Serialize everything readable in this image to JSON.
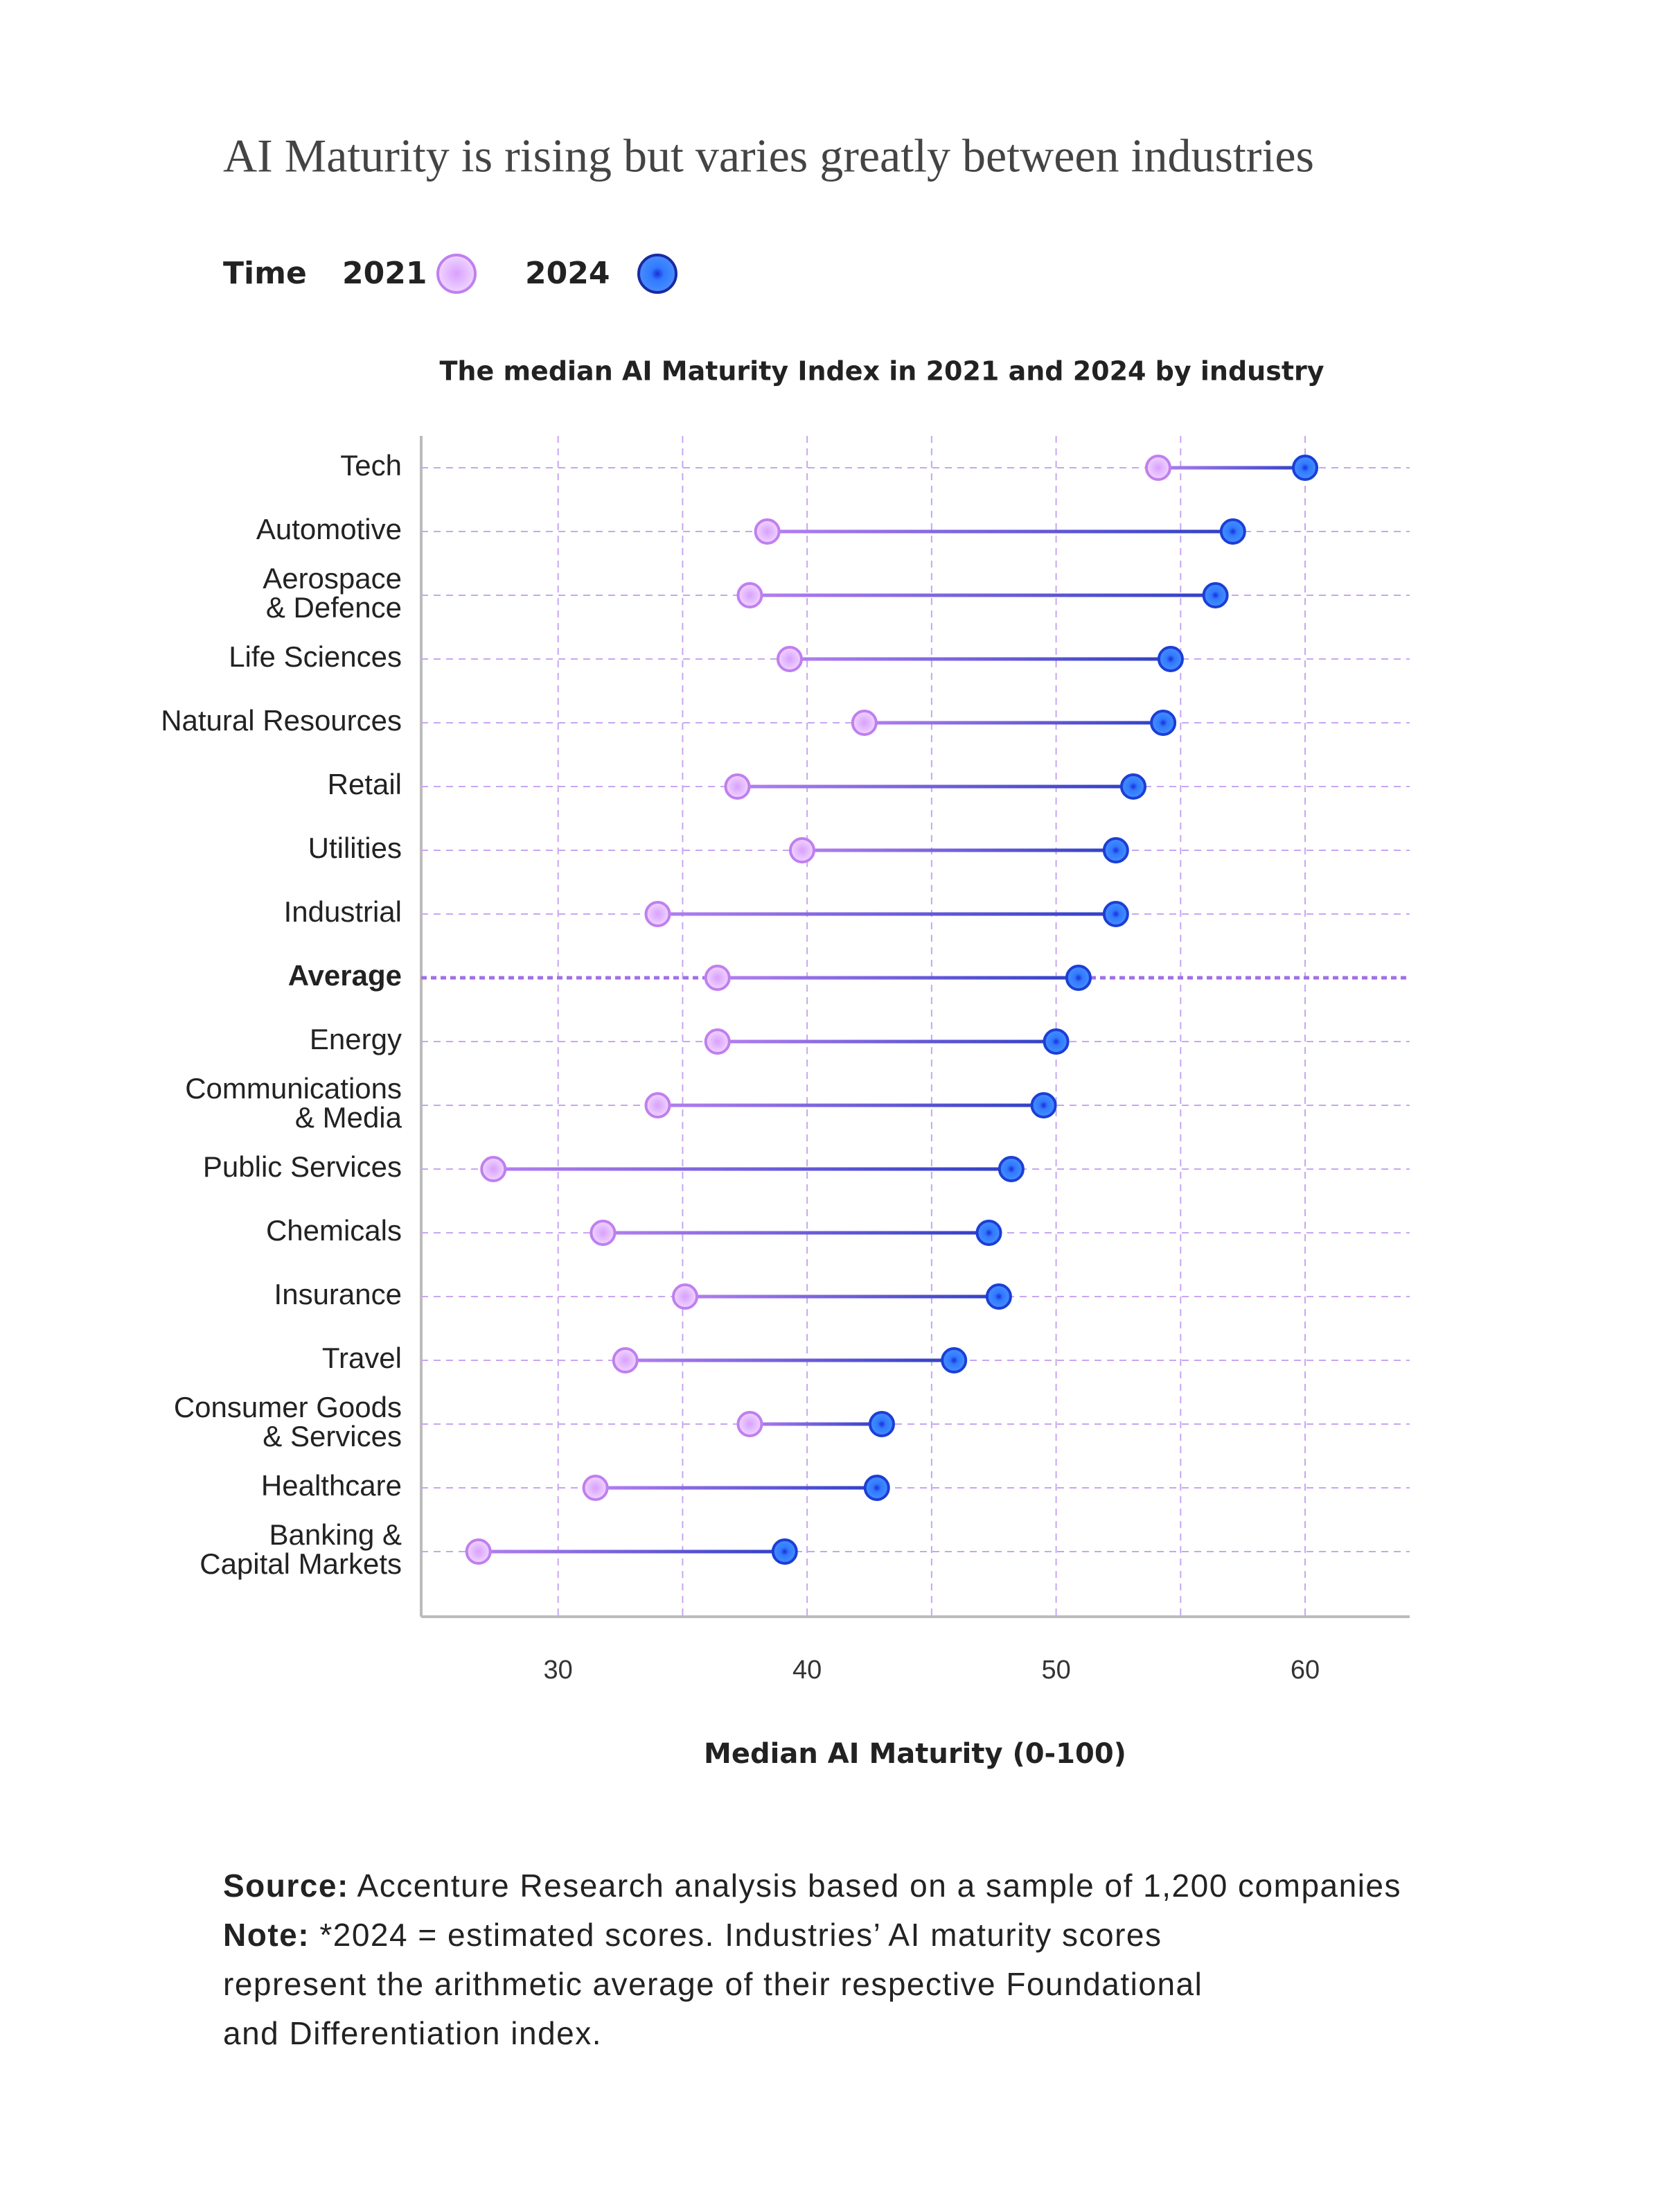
{
  "chart_data": {
    "type": "dumbbell",
    "title": "AI Maturity is rising but varies greatly between industries",
    "legend_title": "Time",
    "subtitle": "The median AI Maturity Index in 2021 and 2024 by industry",
    "x_label": "Median AI Maturity (0-100)",
    "categories": [
      "Tech",
      "Automotive",
      "Aerospace\n& Defence",
      "Life Sciences",
      "Natural Resources",
      "Retail",
      "Utilities",
      "Industrial",
      "Average",
      "Energy",
      "Communications\n& Media",
      "Public Services",
      "Chemicals",
      "Insurance",
      "Travel",
      "Consumer Goods\n& Services",
      "Healthcare",
      "Banking &\nCapital Markets"
    ],
    "highlight_index": 8,
    "series": [
      {
        "name": "2021",
        "color": "#c07ff0",
        "values": [
          54.1,
          38.4,
          37.7,
          39.3,
          42.3,
          37.2,
          39.8,
          34.0,
          36.4,
          36.4,
          34.0,
          27.4,
          31.8,
          35.1,
          32.7,
          37.7,
          31.5,
          26.8
        ]
      },
      {
        "name": "2024",
        "color": "#1a3fd6",
        "values": [
          60.0,
          57.1,
          56.4,
          54.6,
          54.3,
          53.1,
          52.4,
          52.4,
          50.9,
          50.0,
          49.5,
          48.2,
          47.3,
          47.7,
          45.9,
          43.0,
          42.8,
          39.1
        ]
      }
    ],
    "xlim": [
      24.5,
      64.2
    ],
    "xticks": [
      30,
      40,
      50,
      60
    ],
    "xgrid": [
      30,
      35,
      40,
      45,
      50,
      55,
      60
    ],
    "grid": true
  },
  "footnote": {
    "source_label": "Source:",
    "source_text": "Accenture Research analysis based on a sample of 1,200 companies",
    "note_label": "Note:",
    "note_lines": [
      "*2024 = estimated scores. Industries’ AI maturity scores",
      "represent the arithmetic average of their respective Foundational",
      "and Differentiation index."
    ]
  }
}
